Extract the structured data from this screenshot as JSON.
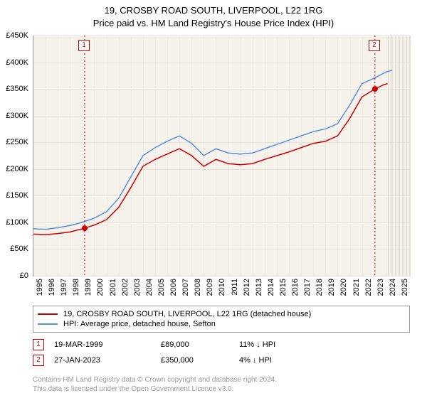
{
  "title": {
    "line1": "19, CROSBY ROAD SOUTH, LIVERPOOL, L22 1RG",
    "line2": "Price paid vs. HM Land Registry's House Price Index (HPI)",
    "fontsize": 13,
    "color": "#000000"
  },
  "chart": {
    "type": "line",
    "background_color": "#f5f2ec",
    "grid_color": "#e8e3d8",
    "axis_color": "#999999",
    "xlim": [
      1995,
      2026
    ],
    "ylim": [
      0,
      450000
    ],
    "ytick_step": 50000,
    "ytick_labels": [
      "£0",
      "£50K",
      "£100K",
      "£150K",
      "£200K",
      "£250K",
      "£300K",
      "£350K",
      "£400K",
      "£450K"
    ],
    "xticks": [
      1995,
      1996,
      1997,
      1998,
      1999,
      2000,
      2001,
      2002,
      2003,
      2004,
      2005,
      2006,
      2007,
      2008,
      2009,
      2010,
      2011,
      2012,
      2013,
      2014,
      2015,
      2016,
      2017,
      2018,
      2019,
      2020,
      2021,
      2022,
      2023,
      2024,
      2025
    ],
    "label_fontsize": 11,
    "future_hatch": {
      "from_year": 2024.1,
      "to_year": 2026,
      "color": "#d8d4ca"
    },
    "series": [
      {
        "id": "price_paid",
        "label": "19, CROSBY ROAD SOUTH, LIVERPOOL, L22 1RG (detached house)",
        "color": "#cc0000",
        "line_width": 1.5,
        "points": [
          [
            1995,
            78000
          ],
          [
            1996,
            77000
          ],
          [
            1997,
            79000
          ],
          [
            1998,
            82000
          ],
          [
            1999.21,
            89000
          ],
          [
            2000,
            95000
          ],
          [
            2001,
            105000
          ],
          [
            2002,
            128000
          ],
          [
            2003,
            165000
          ],
          [
            2004,
            205000
          ],
          [
            2005,
            218000
          ],
          [
            2006,
            228000
          ],
          [
            2007,
            238000
          ],
          [
            2008,
            225000
          ],
          [
            2009,
            205000
          ],
          [
            2010,
            218000
          ],
          [
            2011,
            210000
          ],
          [
            2012,
            208000
          ],
          [
            2013,
            210000
          ],
          [
            2014,
            218000
          ],
          [
            2015,
            225000
          ],
          [
            2016,
            232000
          ],
          [
            2017,
            240000
          ],
          [
            2018,
            248000
          ],
          [
            2019,
            252000
          ],
          [
            2020,
            262000
          ],
          [
            2021,
            295000
          ],
          [
            2022,
            335000
          ],
          [
            2023.07,
            350000
          ],
          [
            2023.8,
            358000
          ],
          [
            2024.1,
            360000
          ]
        ]
      },
      {
        "id": "hpi",
        "label": "HPI: Average price, detached house, Sefton",
        "color": "#5b8fd6",
        "line_width": 1.5,
        "points": [
          [
            1995,
            88000
          ],
          [
            1996,
            87000
          ],
          [
            1997,
            90000
          ],
          [
            1998,
            94000
          ],
          [
            1999,
            100000
          ],
          [
            2000,
            108000
          ],
          [
            2001,
            120000
          ],
          [
            2002,
            145000
          ],
          [
            2003,
            185000
          ],
          [
            2004,
            225000
          ],
          [
            2005,
            240000
          ],
          [
            2006,
            252000
          ],
          [
            2007,
            262000
          ],
          [
            2008,
            248000
          ],
          [
            2009,
            225000
          ],
          [
            2010,
            238000
          ],
          [
            2011,
            230000
          ],
          [
            2012,
            228000
          ],
          [
            2013,
            230000
          ],
          [
            2014,
            238000
          ],
          [
            2015,
            246000
          ],
          [
            2016,
            254000
          ],
          [
            2017,
            262000
          ],
          [
            2018,
            270000
          ],
          [
            2019,
            275000
          ],
          [
            2020,
            285000
          ],
          [
            2021,
            320000
          ],
          [
            2022,
            360000
          ],
          [
            2023,
            370000
          ],
          [
            2024,
            382000
          ],
          [
            2024.5,
            385000
          ]
        ]
      }
    ],
    "sale_markers": [
      {
        "n": "1",
        "year": 1999.21,
        "price": 89000,
        "color": "#cc0000",
        "badge_top": 56
      },
      {
        "n": "2",
        "year": 2023.07,
        "price": 350000,
        "color": "#cc0000",
        "badge_top": 56
      }
    ]
  },
  "legend": {
    "border_color": "#999999",
    "fontsize": 11
  },
  "sales_table": {
    "rows": [
      {
        "n": "1",
        "color": "#cc0000",
        "date": "19-MAR-1999",
        "price": "£89,000",
        "diff": "11% ↓ HPI"
      },
      {
        "n": "2",
        "color": "#cc0000",
        "date": "27-JAN-2023",
        "price": "£350,000",
        "diff": "4% ↓ HPI"
      }
    ]
  },
  "footer": {
    "line1": "Contains HM Land Registry data © Crown copyright and database right 2024.",
    "line2": "This data is licensed under the Open Government Licence v3.0.",
    "color": "#999999",
    "fontsize": 10
  }
}
